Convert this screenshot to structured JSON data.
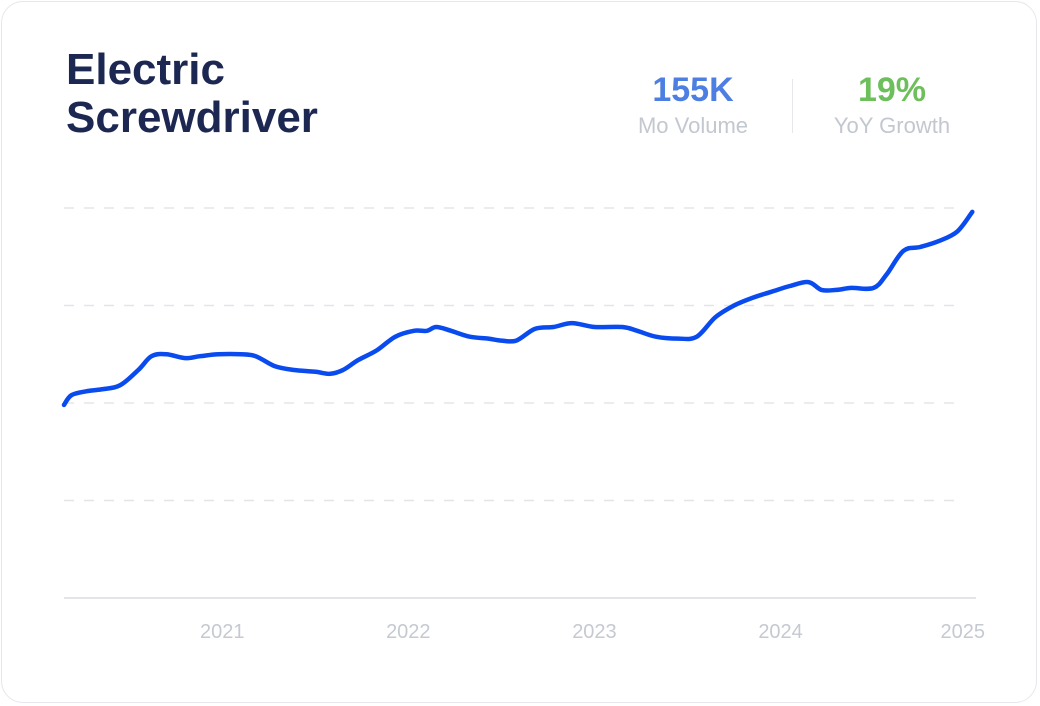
{
  "title": "Electric Screwdriver",
  "stats": {
    "volume": {
      "value": "155K",
      "label": "Mo Volume",
      "color": "#4d7fe3"
    },
    "growth": {
      "value": "19%",
      "label": "YoY Growth",
      "color": "#6cbf5a"
    }
  },
  "chart_data": {
    "type": "line",
    "title": "",
    "xlabel": "",
    "ylabel": "",
    "x_ticks": [
      "2021",
      "2022",
      "2023",
      "2024",
      "2025"
    ],
    "x_range": [
      2020.15,
      2025.05
    ],
    "y_range": [
      0,
      200
    ],
    "grid": "horizontal-dashed",
    "line_color": "#0a4bef",
    "series": [
      {
        "name": "",
        "points": [
          [
            2020.15,
            99
          ],
          [
            2020.19,
            104
          ],
          [
            2020.27,
            106
          ],
          [
            2020.35,
            107
          ],
          [
            2020.45,
            109
          ],
          [
            2020.55,
            117
          ],
          [
            2020.62,
            124
          ],
          [
            2020.7,
            125
          ],
          [
            2020.8,
            123
          ],
          [
            2020.88,
            124
          ],
          [
            2020.98,
            125
          ],
          [
            2021.1,
            125
          ],
          [
            2021.18,
            124
          ],
          [
            2021.28,
            119
          ],
          [
            2021.38,
            117
          ],
          [
            2021.5,
            116
          ],
          [
            2021.58,
            115
          ],
          [
            2021.65,
            117
          ],
          [
            2021.73,
            122
          ],
          [
            2021.83,
            127
          ],
          [
            2021.93,
            134
          ],
          [
            2022.03,
            137
          ],
          [
            2022.1,
            137
          ],
          [
            2022.15,
            139
          ],
          [
            2022.23,
            137
          ],
          [
            2022.33,
            134
          ],
          [
            2022.43,
            133
          ],
          [
            2022.5,
            132
          ],
          [
            2022.58,
            132
          ],
          [
            2022.68,
            138
          ],
          [
            2022.78,
            139
          ],
          [
            2022.88,
            141
          ],
          [
            2023.0,
            139
          ],
          [
            2023.15,
            139
          ],
          [
            2023.23,
            137
          ],
          [
            2023.33,
            134
          ],
          [
            2023.45,
            133
          ],
          [
            2023.55,
            134
          ],
          [
            2023.65,
            144
          ],
          [
            2023.75,
            150
          ],
          [
            2023.85,
            154
          ],
          [
            2023.95,
            157
          ],
          [
            2024.05,
            160
          ],
          [
            2024.15,
            162
          ],
          [
            2024.22,
            158
          ],
          [
            2024.3,
            158
          ],
          [
            2024.38,
            159
          ],
          [
            2024.5,
            159
          ],
          [
            2024.57,
            166
          ],
          [
            2024.66,
            178
          ],
          [
            2024.75,
            180
          ],
          [
            2024.85,
            183
          ],
          [
            2024.95,
            188
          ],
          [
            2025.03,
            198
          ]
        ]
      }
    ]
  }
}
